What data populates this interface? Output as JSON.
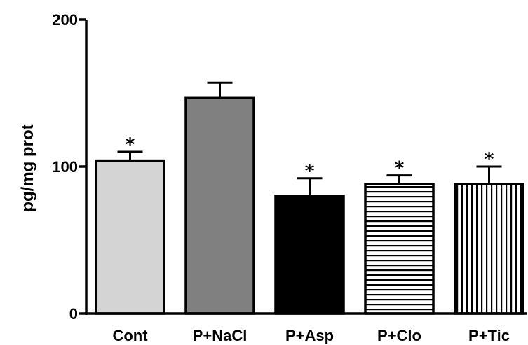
{
  "chart_data": {
    "type": "bar",
    "title": "",
    "xlabel": "",
    "ylabel": "pg/mg prot",
    "ylim": [
      0,
      200
    ],
    "yticks": [
      0,
      100,
      200
    ],
    "grid": false,
    "categories": [
      "Cont",
      "P+NaCl",
      "P+Asp",
      "P+Clo",
      "P+Tic"
    ],
    "values": [
      104,
      147,
      80,
      88,
      88
    ],
    "errors": [
      6,
      10,
      12,
      6,
      12
    ],
    "significance": [
      "*",
      "",
      "*",
      "*",
      "*"
    ],
    "fills": [
      "#d4d4d4",
      "#808080",
      "#000000",
      "h-stripes",
      "v-stripes"
    ]
  }
}
